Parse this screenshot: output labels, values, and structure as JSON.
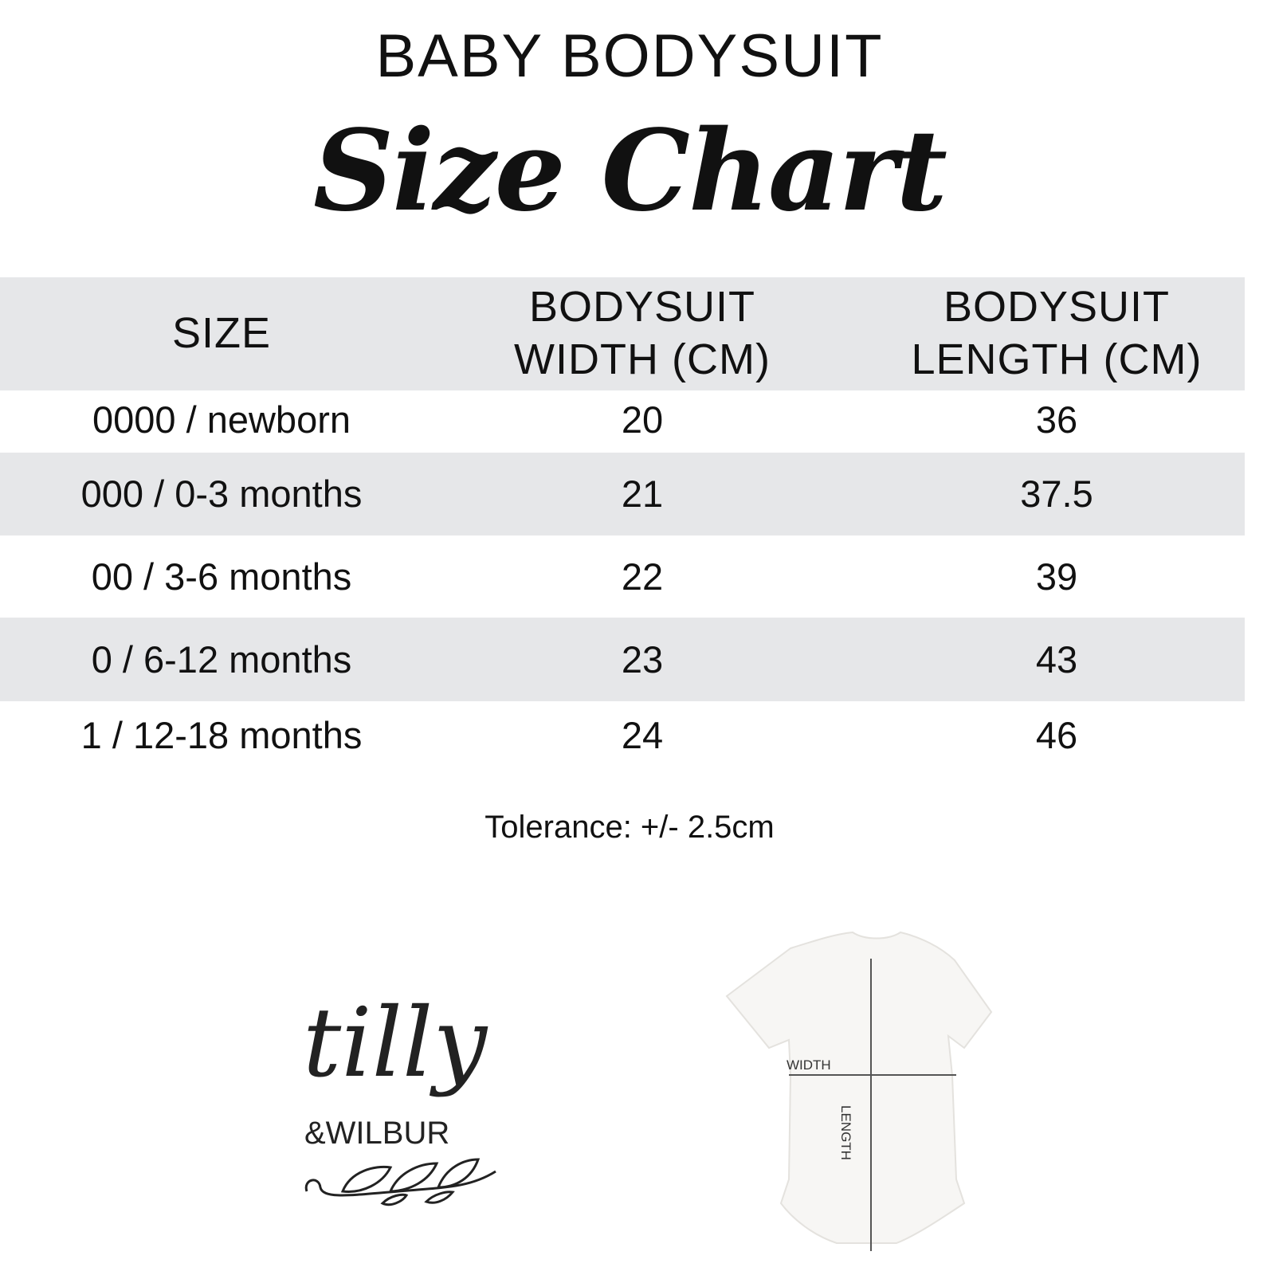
{
  "header": {
    "title": "BABY BODYSUIT",
    "subtitle": "Size Chart"
  },
  "table": {
    "columns": [
      "SIZE",
      "BODYSUIT WIDTH (CM)",
      "BODYSUIT LENGTH (CM)"
    ],
    "column_lines": [
      [
        "SIZE"
      ],
      [
        "BODYSUIT",
        "WIDTH (CM)"
      ],
      [
        "BODYSUIT",
        "LENGTH (CM)"
      ]
    ],
    "rows": [
      [
        "0000 / newborn",
        "20",
        "36"
      ],
      [
        "000 / 0-3 months",
        "21",
        "37.5"
      ],
      [
        "00 / 3-6 months",
        "22",
        "39"
      ],
      [
        "0 / 6-12 months",
        "23",
        "43"
      ],
      [
        "1 / 12-18 months",
        "24",
        "46"
      ]
    ]
  },
  "tolerance": "Tolerance: +/- 2.5cm",
  "diagram": {
    "width_label": "WIDTH",
    "length_label": "LENGTH"
  },
  "logo": {
    "line1": "tilly",
    "line2": "&WILBUR"
  },
  "colors": {
    "stripe": "#e6e7e9",
    "text": "#111111",
    "measure_line": "#555555"
  }
}
